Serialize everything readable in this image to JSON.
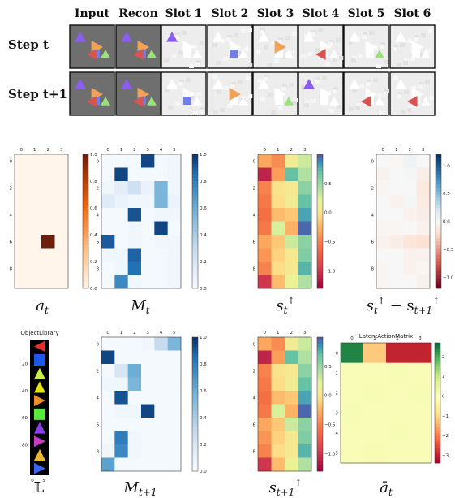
{
  "header": {
    "columns": [
      "Input",
      "Recon",
      "Slot 1",
      "Slot 2",
      "Slot 3",
      "Slot 4",
      "Slot 5",
      "Slot 6"
    ],
    "rows": [
      "Step t",
      "Step t+1"
    ]
  },
  "colors": {
    "input_bg": "#6f6f6f",
    "triangle_purple": "#8b5cf6",
    "triangle_orange": "#f0a25a",
    "triangle_blue": "#6f7fe8",
    "triangle_green": "#9be07a",
    "triangle_red": "#d9534f",
    "triangle_white": "#ffffff"
  },
  "slot_masks": {
    "step_t": [
      {
        "white": [
          "triangle-up",
          "triangle-right",
          "triangle-right-2"
        ],
        "colored": {
          "shape": "triangle-up",
          "color": "purple"
        }
      },
      {
        "white": [
          "triangle-up",
          "triangle-right",
          "triangle-up-2"
        ],
        "colored": {
          "shape": "square",
          "color": "blue"
        }
      },
      {
        "white": [
          "triangle-up",
          "triangle-right",
          "triangle-right-2"
        ],
        "colored": {
          "shape": "triangle-right",
          "color": "orange"
        }
      },
      {
        "white": [
          "triangle-up",
          "triangle-right",
          "triangle-right-2"
        ],
        "colored": {
          "shape": "triangle-left",
          "color": "red"
        }
      },
      {
        "white": [
          "triangle-up",
          "triangle-right",
          "triangle-right-2"
        ],
        "colored": {
          "shape": "triangle-up",
          "color": "green"
        }
      },
      {
        "white": [
          "triangle-up",
          "triangle-right",
          "triangle-right-2"
        ],
        "colored": null
      }
    ],
    "step_t1": [
      {
        "white": [
          "triangle-up",
          "triangle-right",
          "triangle-right-2"
        ],
        "colored": {
          "shape": "square",
          "color": "blue"
        }
      },
      {
        "white": [
          "triangle-up",
          "triangle-right",
          "triangle-right-2"
        ],
        "colored": {
          "shape": "triangle-right",
          "color": "orange"
        }
      },
      {
        "white": [
          "triangle-up",
          "triangle-right",
          "triangle-right-2"
        ],
        "colored": {
          "shape": "triangle-up",
          "color": "green"
        }
      },
      {
        "white": [
          "triangle-up",
          "triangle-right",
          "triangle-right-2"
        ],
        "colored": {
          "shape": "triangle-up",
          "color": "purple"
        }
      },
      {
        "white": [
          "triangle-up",
          "triangle-right",
          "triangle-right-2"
        ],
        "colored": {
          "shape": "triangle-left",
          "color": "red"
        }
      },
      {
        "white": [
          "triangle-up",
          "triangle-right",
          "triangle-right-2"
        ],
        "colored": {
          "shape": "triangle-left",
          "color": "red"
        }
      }
    ]
  },
  "captions": [
    "a_t",
    "M_t",
    "s_t^↑",
    "s_t^↑ − s_{t+1}^↑",
    "𝕃",
    "M_{t+1}",
    "s_{t+1}^↑",
    "ā_t"
  ],
  "chart_data": [
    {
      "type": "heatmap",
      "id": "a_t",
      "cmap": "oranges",
      "x_ticks": [
        "0",
        "1",
        "2",
        "3"
      ],
      "y_ticks": [
        "0",
        "2",
        "4",
        "6",
        "8"
      ],
      "colorbar_ticks": [
        "0.0",
        "0.2",
        "0.4",
        "0.6",
        "0.8",
        "1.0"
      ],
      "vmin": 0,
      "vmax": 1,
      "values": [
        [
          0,
          0,
          0,
          0
        ],
        [
          0,
          0,
          0,
          0
        ],
        [
          0,
          0,
          0,
          0
        ],
        [
          0,
          0,
          0,
          0
        ],
        [
          0,
          0,
          0,
          0
        ],
        [
          0,
          0,
          0,
          0
        ],
        [
          0,
          0,
          1,
          0
        ],
        [
          0,
          0,
          0,
          0
        ],
        [
          0,
          0,
          0,
          0
        ],
        [
          0,
          0,
          0,
          0
        ]
      ]
    },
    {
      "type": "heatmap",
      "id": "M_t",
      "cmap": "blues",
      "x_ticks": [
        "0",
        "1",
        "2",
        "3",
        "4",
        "5"
      ],
      "y_ticks": [
        "0",
        "2",
        "4",
        "6",
        "8"
      ],
      "colorbar_ticks": [
        "0.0",
        "0.2",
        "0.4",
        "0.6",
        "0.8",
        "1.0"
      ],
      "vmin": 0,
      "vmax": 1,
      "values": [
        [
          0.02,
          0.02,
          0.02,
          0.95,
          0.02,
          0.05
        ],
        [
          0.02,
          0.95,
          0.02,
          0.02,
          0.02,
          0.05
        ],
        [
          0.05,
          0.12,
          0.25,
          0.08,
          0.55,
          0.05
        ],
        [
          0.15,
          0.08,
          0.05,
          0.05,
          0.55,
          0.08
        ],
        [
          0.02,
          0.02,
          0.92,
          0.02,
          0.05,
          0.05
        ],
        [
          0.02,
          0.02,
          0.05,
          0.02,
          0.95,
          0.02
        ],
        [
          0.9,
          0.02,
          0.05,
          0.02,
          0.05,
          0.05
        ],
        [
          0.05,
          0.05,
          0.88,
          0.02,
          0.02,
          0.05
        ],
        [
          0.02,
          0.05,
          0.85,
          0.02,
          0.02,
          0.05
        ],
        [
          0.02,
          0.75,
          0.05,
          0.02,
          0.02,
          0.05
        ]
      ]
    },
    {
      "type": "heatmap",
      "id": "s_t_up",
      "cmap": "spectral",
      "x_ticks": [
        "0",
        "1",
        "2",
        "3"
      ],
      "y_ticks": [
        "0",
        "2",
        "4",
        "6",
        "8"
      ],
      "colorbar_ticks": [
        "0.5",
        "0.0",
        "−0.5",
        "−1.0"
      ],
      "colorbar_tick_values": [
        0.5,
        0.0,
        -0.5,
        -1.0
      ],
      "vmin": -1.3,
      "vmax": 1.0,
      "values": [
        [
          -0.3,
          -0.45,
          0.1,
          0.3
        ],
        [
          -1.1,
          -0.35,
          0.7,
          0.4
        ],
        [
          -0.5,
          0.0,
          0.05,
          0.55
        ],
        [
          -0.55,
          -0.05,
          0.1,
          0.7
        ],
        [
          -0.6,
          -0.2,
          -0.15,
          0.8
        ],
        [
          -0.55,
          0.25,
          -0.25,
          0.95
        ],
        [
          -0.3,
          -0.15,
          0.3,
          0.55
        ],
        [
          -0.4,
          -0.1,
          0.05,
          0.6
        ],
        [
          -0.5,
          -0.05,
          0.05,
          0.75
        ],
        [
          -1.0,
          -0.2,
          0.15,
          0.4
        ]
      ]
    },
    {
      "type": "heatmap",
      "id": "s_t_diff",
      "cmap": "rdbu",
      "x_ticks": [
        "0",
        "1",
        "2",
        "3"
      ],
      "y_ticks": [
        "0",
        "2",
        "4",
        "6",
        "8"
      ],
      "colorbar_ticks": [
        "1.0",
        "0.5",
        "0.0",
        "−0.5",
        "−1.0"
      ],
      "colorbar_tick_values": [
        1.0,
        0.5,
        0.0,
        -0.5,
        -1.0
      ],
      "vmin": -1.2,
      "vmax": 1.2,
      "values": [
        [
          0.0,
          -0.02,
          0.05,
          0.0
        ],
        [
          -0.05,
          0.0,
          0.02,
          -0.08
        ],
        [
          -0.02,
          0.0,
          0.0,
          -0.12
        ],
        [
          0.0,
          -0.05,
          0.02,
          -0.1
        ],
        [
          0.0,
          0.0,
          -0.05,
          -0.08
        ],
        [
          -0.02,
          -0.02,
          0.0,
          -0.05
        ],
        [
          -0.05,
          -0.08,
          -0.15,
          -0.18
        ],
        [
          0.0,
          0.0,
          -0.05,
          -0.05
        ],
        [
          -0.02,
          0.0,
          -0.05,
          -0.02
        ],
        [
          -0.02,
          0.0,
          0.0,
          -0.05
        ]
      ]
    },
    {
      "type": "image",
      "id": "L",
      "title": "ObjectLibrary",
      "y_ticks": [
        "20",
        "40",
        "60",
        "80"
      ],
      "x_ticks": [
        "0",
        "5"
      ],
      "items": [
        {
          "shape": "triangle-left",
          "color": "#e03030"
        },
        {
          "shape": "square",
          "color": "#1e5ae6"
        },
        {
          "shape": "triangle-up",
          "color": "#c8f03c"
        },
        {
          "shape": "triangle-up",
          "color": "#e6e600"
        },
        {
          "shape": "triangle-right",
          "color": "#f08c28"
        },
        {
          "shape": "square",
          "color": "#5ae63c"
        },
        {
          "shape": "triangle-up",
          "color": "#8c3cf0"
        },
        {
          "shape": "triangle-right",
          "color": "#c83cc8"
        },
        {
          "shape": "triangle-up",
          "color": "#f0b428"
        },
        {
          "shape": "triangle-right",
          "color": "#3c64f0"
        }
      ]
    },
    {
      "type": "heatmap",
      "id": "M_t1",
      "cmap": "blues",
      "x_ticks": [
        "0",
        "1",
        "2",
        "3",
        "4",
        "5"
      ],
      "y_ticks": [
        "0",
        "2",
        "4",
        "6",
        "8"
      ],
      "colorbar_ticks": [
        "0.0",
        "0.2",
        "0.4",
        "0.6",
        "0.8",
        "1.0"
      ],
      "vmin": 0,
      "vmax": 1,
      "values": [
        [
          0.02,
          0.02,
          0.02,
          0.05,
          0.3,
          0.55
        ],
        [
          0.95,
          0.02,
          0.02,
          0.02,
          0.02,
          0.02
        ],
        [
          0.02,
          0.2,
          0.6,
          0.02,
          0.02,
          0.02
        ],
        [
          0.05,
          0.05,
          0.55,
          0.02,
          0.02,
          0.02
        ],
        [
          0.02,
          0.92,
          0.02,
          0.02,
          0.02,
          0.02
        ],
        [
          0.02,
          0.05,
          0.05,
          0.95,
          0.02,
          0.02
        ],
        [
          0.02,
          0.02,
          0.02,
          0.02,
          0.02,
          0.02
        ],
        [
          0.02,
          0.8,
          0.05,
          0.02,
          0.02,
          0.02
        ],
        [
          0.05,
          0.75,
          0.05,
          0.02,
          0.02,
          0.02
        ],
        [
          0.65,
          0.02,
          0.02,
          0.02,
          0.02,
          0.02
        ]
      ]
    },
    {
      "type": "heatmap",
      "id": "s_t1_up",
      "cmap": "spectral",
      "x_ticks": [
        "0",
        "1",
        "2",
        "3"
      ],
      "y_ticks": [
        "0",
        "2",
        "4",
        "6",
        "8"
      ],
      "colorbar_ticks": [
        "0.5",
        "0.0",
        "−0.5",
        "−1.0"
      ],
      "colorbar_tick_values": [
        0.5,
        0.0,
        -0.5,
        -1.0
      ],
      "vmin": -1.3,
      "vmax": 1.0,
      "values": [
        [
          -0.3,
          -0.45,
          0.1,
          0.3
        ],
        [
          -1.1,
          -0.35,
          0.7,
          0.4
        ],
        [
          -0.5,
          0.0,
          0.05,
          0.55
        ],
        [
          -0.55,
          -0.05,
          0.1,
          0.7
        ],
        [
          -0.6,
          -0.2,
          -0.15,
          0.8
        ],
        [
          -0.55,
          0.25,
          -0.25,
          0.95
        ],
        [
          -0.3,
          -0.15,
          0.3,
          0.55
        ],
        [
          -0.4,
          -0.1,
          0.05,
          0.6
        ],
        [
          -0.5,
          -0.05,
          0.05,
          0.75
        ],
        [
          -1.0,
          -0.2,
          0.15,
          0.4
        ]
      ]
    },
    {
      "type": "heatmap",
      "id": "a_bar",
      "cmap": "rdylgn",
      "title": "LatentActionMatrix",
      "x_ticks": [
        "0",
        "1",
        "2",
        "3"
      ],
      "y_ticks": [
        "0",
        "1",
        "2",
        "3",
        "4",
        "5"
      ],
      "colorbar_ticks": [
        "2",
        "1",
        "0",
        "−1",
        "−2",
        "−3"
      ],
      "colorbar_tick_values": [
        2,
        1,
        0,
        -1,
        -2,
        -3
      ],
      "vmin": -3.4,
      "vmax": 2.7,
      "values": [
        [
          2.4,
          -1.2,
          -3.0,
          -3.0
        ],
        [
          0.1,
          0.1,
          0.15,
          0.1
        ],
        [
          0.1,
          0.15,
          0.1,
          0.15
        ],
        [
          0.15,
          0.1,
          0.1,
          0.1
        ],
        [
          0.1,
          0.1,
          0.15,
          0.1
        ],
        [
          0.1,
          0.15,
          0.1,
          0.1
        ]
      ]
    }
  ]
}
